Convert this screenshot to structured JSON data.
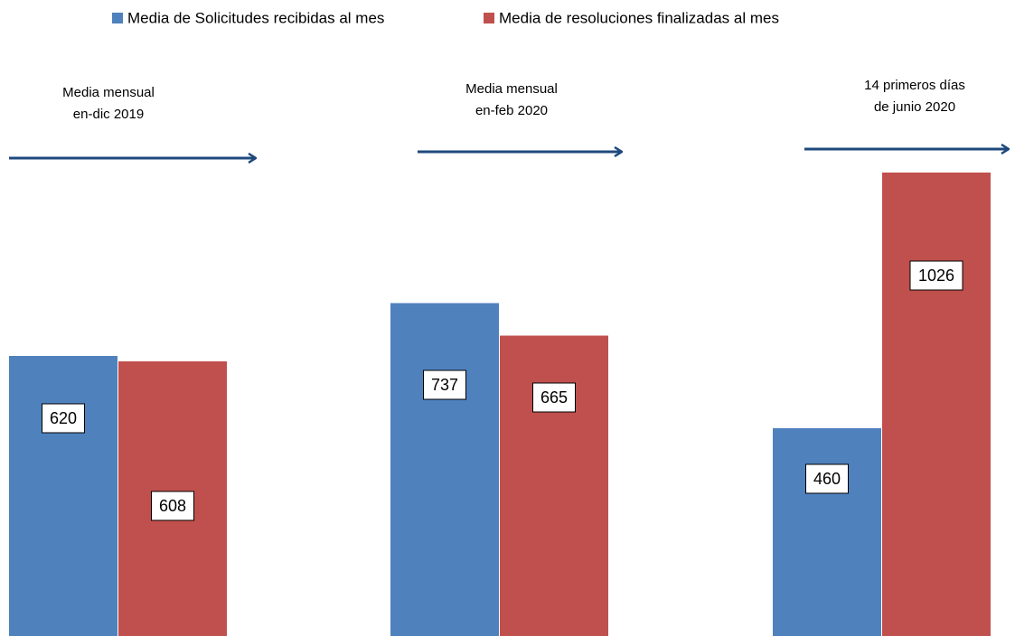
{
  "chart_data": {
    "type": "bar",
    "categories": [
      [
        "Media mensual",
        "en-dic 2019"
      ],
      [
        "Media mensual",
        "en-feb 2020"
      ],
      [
        "14  primeros días",
        "de junio 2020"
      ]
    ],
    "series": [
      {
        "name": "Media de Solicitudes recibidas al mes",
        "color": "#4f81bd",
        "values": [
          620,
          737,
          460
        ]
      },
      {
        "name": "Media de resoluciones finalizadas  al mes",
        "color": "#c0504d",
        "values": [
          608,
          665,
          1026
        ]
      }
    ],
    "ylim": [
      0,
      1030
    ]
  }
}
